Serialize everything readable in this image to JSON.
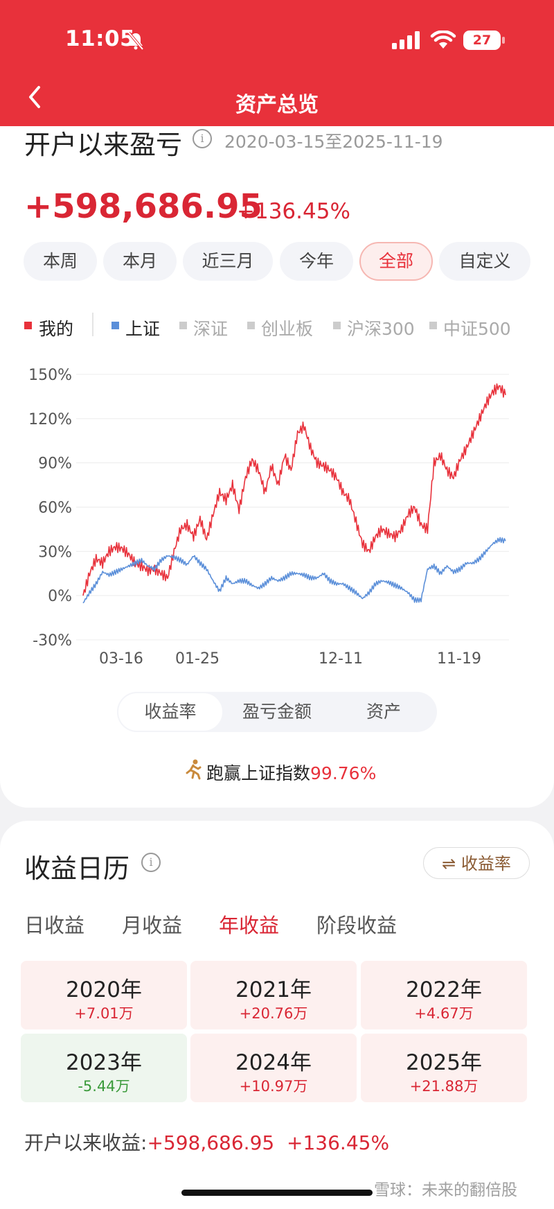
{
  "status_bar": {
    "time": "11:05",
    "battery": "27"
  },
  "nav": {
    "title": "资产总览",
    "back_icon": "chevron-left-icon"
  },
  "summary": {
    "title": "开户以来盈亏",
    "date_range": "2020-03-15至2025-11-19",
    "pnl": "+598,686.95",
    "pnl_pct": "+136.45%"
  },
  "periods": [
    "本周",
    "本月",
    "近三月",
    "今年",
    "全部",
    "自定义"
  ],
  "active_period": "全部",
  "legend": [
    {
      "label": "我的",
      "color": "#e8313b",
      "active": true
    },
    {
      "label": "上证",
      "color": "#5b8fd9",
      "active": true
    },
    {
      "label": "深证",
      "color": "#cccccc",
      "active": false
    },
    {
      "label": "创业板",
      "color": "#cccccc",
      "active": false
    },
    {
      "label": "沪深300",
      "color": "#cccccc",
      "active": false
    },
    {
      "label": "中证500",
      "color": "#cccccc",
      "active": false
    }
  ],
  "chart_data": {
    "type": "line",
    "y_ticks": [
      "150%",
      "120%",
      "90%",
      "60%",
      "30%",
      "0%",
      "-30%"
    ],
    "ylim": [
      -30,
      150
    ],
    "x_ticks": [
      "03-16",
      "01-25",
      "12-11",
      "11-19"
    ],
    "grid": true,
    "series": [
      {
        "name": "我的",
        "color": "#e8313b",
        "values": [
          0,
          15,
          25,
          22,
          30,
          33,
          32,
          28,
          22,
          20,
          17,
          18,
          15,
          12,
          30,
          45,
          48,
          40,
          52,
          38,
          55,
          70,
          65,
          75,
          58,
          80,
          92,
          85,
          70,
          88,
          75,
          95,
          85,
          110,
          115,
          100,
          90,
          88,
          85,
          80,
          70,
          65,
          50,
          35,
          30,
          40,
          45,
          42,
          40,
          45,
          55,
          60,
          48,
          45,
          90,
          95,
          85,
          80,
          92,
          100,
          110,
          120,
          130,
          138,
          142,
          136
        ]
      },
      {
        "name": "上证",
        "color": "#5b8fd9",
        "values": [
          -5,
          2,
          8,
          16,
          14,
          16,
          18,
          20,
          22,
          24,
          20,
          18,
          24,
          27,
          26,
          24,
          21,
          27,
          22,
          18,
          10,
          3,
          12,
          8,
          10,
          10,
          7,
          5,
          8,
          12,
          10,
          12,
          15,
          15,
          14,
          12,
          12,
          15,
          10,
          8,
          8,
          5,
          2,
          -2,
          2,
          8,
          10,
          9,
          7,
          5,
          2,
          -3,
          -3,
          18,
          20,
          15,
          20,
          16,
          18,
          22,
          22,
          25,
          30,
          35,
          38,
          37
        ]
      }
    ]
  },
  "chart_tabs": [
    "收益率",
    "盈亏金额",
    "资产"
  ],
  "active_chart_tab": "收益率",
  "beat": {
    "prefix": "跑赢上证指数",
    "value": "99.76%",
    "icon": "running-man-icon"
  },
  "calendar": {
    "title": "收益日历",
    "switch_label": "⇌ 收益率",
    "tabs": [
      "日收益",
      "月收益",
      "年收益",
      "阶段收益"
    ],
    "active_tab": "年收益",
    "years": [
      {
        "year": "2020年",
        "value": "+7.01万",
        "dir": "up"
      },
      {
        "year": "2021年",
        "value": "+20.76万",
        "dir": "up"
      },
      {
        "year": "2022年",
        "value": "+4.67万",
        "dir": "up"
      },
      {
        "year": "2023年",
        "value": "-5.44万",
        "dir": "down"
      },
      {
        "year": "2024年",
        "value": "+10.97万",
        "dir": "up"
      },
      {
        "year": "2025年",
        "value": "+21.88万",
        "dir": "up"
      }
    ],
    "total_label": "开户以来收益:",
    "total_value": "+598,686.95",
    "total_pct": "+136.45%"
  },
  "watermark": "雪球：未来的翻倍股"
}
